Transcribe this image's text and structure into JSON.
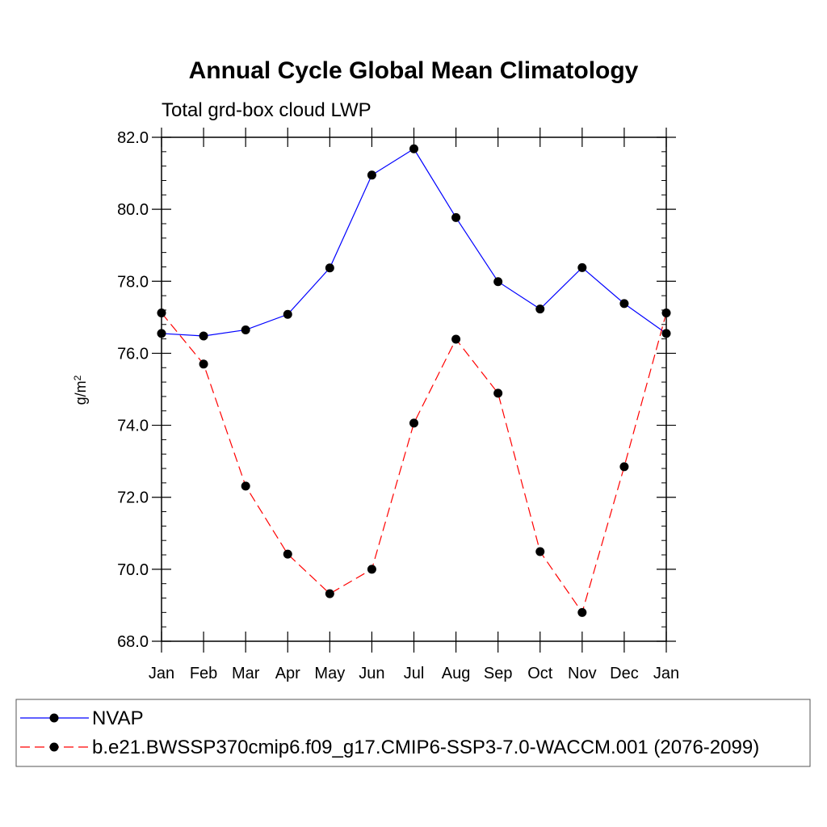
{
  "chart_data": {
    "type": "line",
    "title": "Annual Cycle Global Mean Climatology",
    "subtitle": "Total grd-box cloud LWP",
    "ylabel": "g/m",
    "ylabel_sup": "2",
    "xlabel": "",
    "ylim": [
      68.0,
      82.0
    ],
    "yticks": [
      "68.0",
      "70.0",
      "72.0",
      "74.0",
      "76.0",
      "78.0",
      "80.0",
      "82.0"
    ],
    "categories": [
      "Jan",
      "Feb",
      "Mar",
      "Apr",
      "May",
      "Jun",
      "Jul",
      "Aug",
      "Sep",
      "Oct",
      "Nov",
      "Dec",
      "Jan"
    ],
    "series": [
      {
        "name": "NVAP",
        "color": "#0000ff",
        "style": "solid",
        "values": [
          76.55,
          76.48,
          76.65,
          77.08,
          78.37,
          80.95,
          81.68,
          79.77,
          77.99,
          77.23,
          78.38,
          77.38,
          76.55
        ]
      },
      {
        "name": "b.e21.BWSSP370cmip6.f09_g17.CMIP6-SSP3-7.0-WACCM.001 (2076-2099)",
        "color": "#ff0000",
        "style": "dashed",
        "values": [
          77.12,
          75.7,
          72.31,
          70.42,
          69.32,
          70.0,
          74.06,
          76.39,
          74.89,
          70.49,
          68.8,
          72.85,
          77.12
        ]
      }
    ]
  }
}
